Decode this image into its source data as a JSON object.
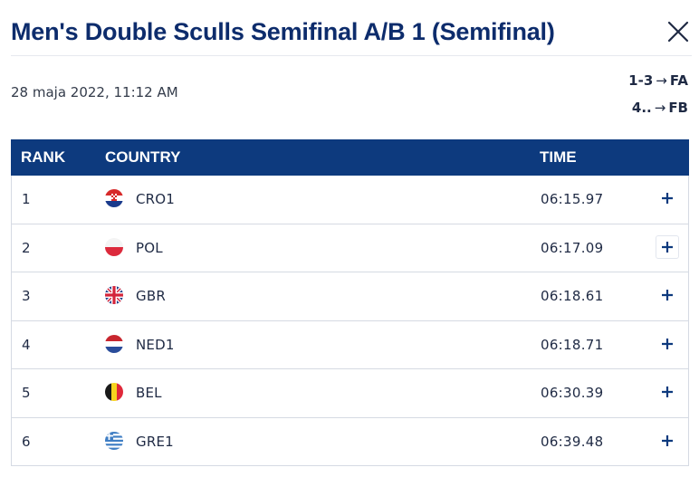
{
  "header": {
    "title": "Men's Double Sculls Semifinal A/B 1 (Semifinal)",
    "close_icon": "close-icon"
  },
  "meta": {
    "date": "28 maja 2022, 11:12 AM",
    "progression": [
      {
        "ranks": "1-3",
        "arrow": "→",
        "target": "FA"
      },
      {
        "ranks": "4..",
        "arrow": "→",
        "target": "FB"
      }
    ]
  },
  "table": {
    "headers": {
      "rank": "RANK",
      "country": "COUNTRY",
      "time": "TIME"
    },
    "rows": [
      {
        "rank": "1",
        "country": "CRO1",
        "flag": "croatia-flag-icon",
        "time": "06:15.97"
      },
      {
        "rank": "2",
        "country": "POL",
        "flag": "poland-flag-icon",
        "time": "06:17.09"
      },
      {
        "rank": "3",
        "country": "GBR",
        "flag": "great-britain-flag-icon",
        "time": "06:18.61"
      },
      {
        "rank": "4",
        "country": "NED1",
        "flag": "netherlands-flag-icon",
        "time": "06:18.71"
      },
      {
        "rank": "5",
        "country": "BEL",
        "flag": "belgium-flag-icon",
        "time": "06:30.39"
      },
      {
        "rank": "6",
        "country": "GRE1",
        "flag": "greece-flag-icon",
        "time": "06:39.48"
      }
    ],
    "expand_icon": "plus-icon"
  },
  "colors": {
    "brand_navy": "#0d2c6c",
    "header_bg": "#0d3a7e",
    "row_border": "#d5dae3"
  }
}
